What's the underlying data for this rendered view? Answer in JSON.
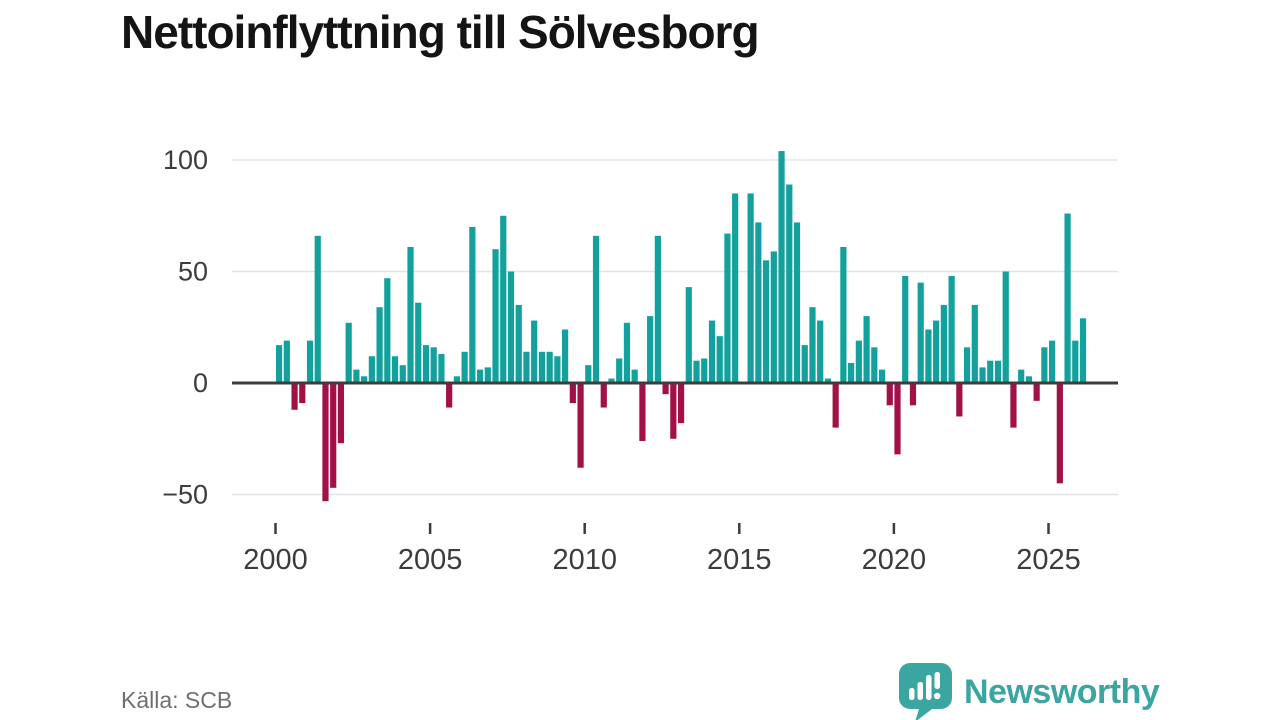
{
  "title": "Nettoinflyttning till Sölvesborg",
  "source": "Källa: SCB",
  "brand": {
    "name": "Newsworthy",
    "icon": "bar-chart-speech-bubble-icon"
  },
  "colors": {
    "positive": "#12a19d",
    "negative": "#a21045",
    "baseline": "#3d3d3d",
    "gridline": "#e4e4e4",
    "axis_text": "#3c3c3c",
    "title_text": "#141414",
    "source_text": "#6f6f6f",
    "brand_teal": "#3ba5a2",
    "background": "#ffffff"
  },
  "chart_data": {
    "type": "bar",
    "title": "Nettoinflyttning till Sölvesborg",
    "xlabel": "",
    "ylabel": "",
    "frequency": "quarterly",
    "start_period": "2000 Q1",
    "end_period": "2026 Q1",
    "grid": "horizontal",
    "legend": "none",
    "ylim": [
      -60,
      112
    ],
    "y_ticks": [
      100,
      50,
      0,
      -50
    ],
    "x_tick_labels": [
      "2000",
      "2005",
      "2010",
      "2015",
      "2020",
      "2025"
    ],
    "values": [
      17,
      19,
      -12,
      -9,
      19,
      66,
      -53,
      -47,
      -27,
      27,
      6,
      3,
      12,
      34,
      47,
      12,
      8,
      61,
      36,
      17,
      16,
      13,
      -11,
      3,
      14,
      70,
      6,
      7,
      60,
      75,
      50,
      35,
      14,
      28,
      14,
      14,
      12,
      24,
      -9,
      -38,
      8,
      66,
      -11,
      2,
      11,
      27,
      6,
      -26,
      30,
      66,
      -5,
      -25,
      -18,
      43,
      10,
      11,
      28,
      21,
      67,
      85,
      0,
      85,
      72,
      55,
      59,
      104,
      89,
      72,
      17,
      34,
      28,
      2,
      -20,
      61,
      9,
      19,
      30,
      16,
      6,
      -10,
      -32,
      48,
      -10,
      45,
      24,
      28,
      35,
      48,
      -15,
      16,
      35,
      7,
      10,
      10,
      50,
      -20,
      6,
      3,
      -8,
      16,
      19,
      -45,
      76,
      19,
      29
    ]
  }
}
